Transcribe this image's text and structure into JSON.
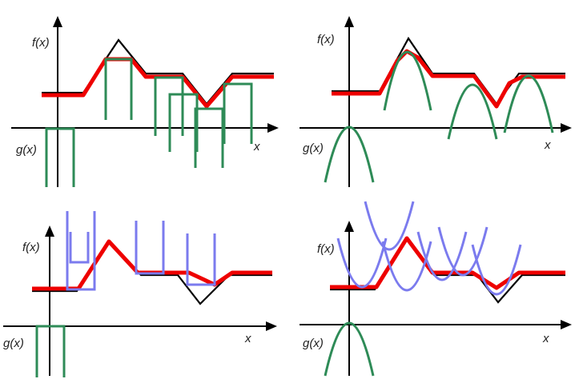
{
  "panels": [
    {
      "f_label": "f(x)",
      "g_label": "g(x)",
      "x_label": "x"
    },
    {
      "f_label": "f(x)",
      "g_label": "g(x)",
      "x_label": "x"
    },
    {
      "f_label": "f(x)",
      "g_label": "g(x)",
      "x_label": "x"
    },
    {
      "f_label": "f(x)",
      "g_label": "g(x)",
      "x_label": "x"
    }
  ],
  "colors": {
    "f_curve": "#000000",
    "result_curve": "#ee0000",
    "structuring_element_green": "#2e8b57",
    "structuring_element_blue": "#7b7bee"
  }
}
